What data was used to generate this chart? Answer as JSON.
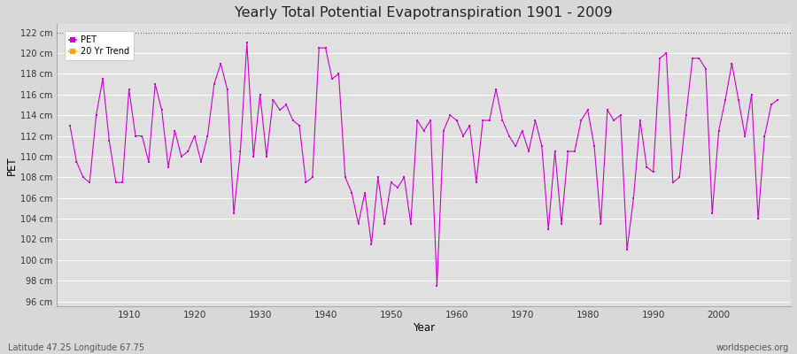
{
  "title": "Yearly Total Potential Evapotranspiration 1901 - 2009",
  "xlabel": "Year",
  "ylabel": "PET",
  "footnote_left": "Latitude 47.25 Longitude 67.75",
  "footnote_right": "worldspecies.org",
  "line_color": "#cc00cc",
  "trend_color": "#FFA500",
  "fig_facecolor": "#d8d8d8",
  "plot_facecolor": "#e0e0e0",
  "ylim": [
    95.5,
    122.8
  ],
  "yticks": [
    96,
    98,
    100,
    102,
    104,
    106,
    108,
    110,
    112,
    114,
    116,
    118,
    120,
    122
  ],
  "xticks": [
    1910,
    1920,
    1930,
    1940,
    1950,
    1960,
    1970,
    1980,
    1990,
    2000
  ],
  "xlim": [
    1899,
    2011
  ],
  "years": [
    1901,
    1902,
    1903,
    1904,
    1905,
    1906,
    1907,
    1908,
    1909,
    1910,
    1911,
    1912,
    1913,
    1914,
    1915,
    1916,
    1917,
    1918,
    1919,
    1920,
    1921,
    1922,
    1923,
    1924,
    1925,
    1926,
    1927,
    1928,
    1929,
    1930,
    1931,
    1932,
    1933,
    1934,
    1935,
    1936,
    1937,
    1938,
    1939,
    1940,
    1941,
    1942,
    1943,
    1944,
    1945,
    1946,
    1947,
    1948,
    1949,
    1950,
    1951,
    1952,
    1953,
    1954,
    1955,
    1956,
    1957,
    1958,
    1959,
    1960,
    1961,
    1962,
    1963,
    1964,
    1965,
    1966,
    1967,
    1968,
    1969,
    1970,
    1971,
    1972,
    1973,
    1974,
    1975,
    1976,
    1977,
    1978,
    1979,
    1980,
    1981,
    1982,
    1983,
    1984,
    1985,
    1986,
    1987,
    1988,
    1989,
    1990,
    1991,
    1992,
    1993,
    1994,
    1995,
    1996,
    1997,
    1998,
    1999,
    2000,
    2001,
    2002,
    2003,
    2004,
    2005,
    2006,
    2007,
    2008,
    2009
  ],
  "pet": [
    113.0,
    109.5,
    108.0,
    107.5,
    114.0,
    117.5,
    111.5,
    107.5,
    107.5,
    116.5,
    112.0,
    112.0,
    109.5,
    117.0,
    114.5,
    109.0,
    112.5,
    110.0,
    110.5,
    112.0,
    109.5,
    112.0,
    117.0,
    119.0,
    116.5,
    104.5,
    110.5,
    121.0,
    110.0,
    116.0,
    110.0,
    115.5,
    114.5,
    115.0,
    113.5,
    113.0,
    107.5,
    108.0,
    120.5,
    120.5,
    117.5,
    118.0,
    108.0,
    106.5,
    103.5,
    106.5,
    101.5,
    108.0,
    103.5,
    107.5,
    107.0,
    108.0,
    103.5,
    113.5,
    112.5,
    113.5,
    97.5,
    112.5,
    114.0,
    113.5,
    112.0,
    113.0,
    107.5,
    113.5,
    113.5,
    116.5,
    113.5,
    112.0,
    111.0,
    112.5,
    110.5,
    113.5,
    111.0,
    103.0,
    110.5,
    103.5,
    110.5,
    110.5,
    113.5,
    114.5,
    111.0,
    103.5,
    114.5,
    113.5,
    114.0,
    101.0,
    106.0,
    113.5,
    109.0,
    108.5,
    119.5,
    120.0,
    107.5,
    108.0,
    114.0,
    119.5,
    119.5,
    118.5,
    104.5,
    112.5,
    115.5,
    119.0,
    115.5,
    112.0,
    116.0,
    104.0,
    112.0,
    115.0,
    115.5
  ]
}
